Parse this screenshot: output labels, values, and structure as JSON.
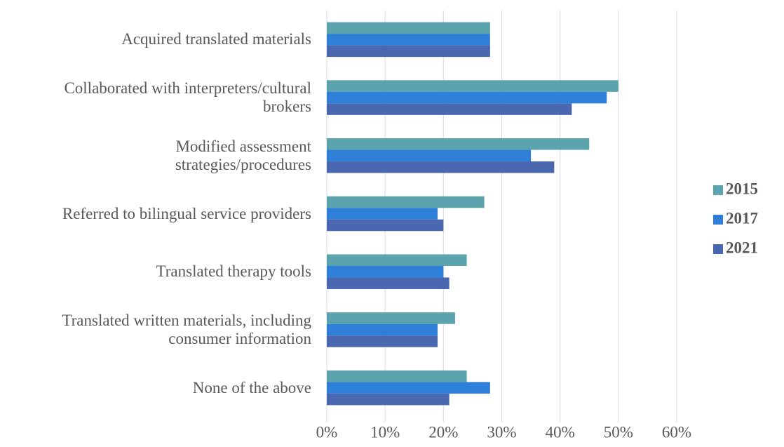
{
  "chart_data": {
    "type": "hbar",
    "categories": [
      "Acquired translated materials",
      "Collaborated with interpreters/cultural\nbrokers",
      "Modified assessment\nstrategies/procedures",
      "Referred to bilingual service providers",
      "Translated therapy tools",
      "Translated written materials, including\nconsumer information",
      "None of the above"
    ],
    "series": [
      {
        "name": "2015",
        "color": "#5ba3ad",
        "values": [
          28,
          50,
          45,
          27,
          24,
          22,
          24
        ]
      },
      {
        "name": "2017",
        "color": "#2e7fd8",
        "values": [
          28,
          48,
          35,
          19,
          20,
          19,
          28
        ]
      },
      {
        "name": "2021",
        "color": "#4a68b0",
        "values": [
          28,
          42,
          39,
          20,
          21,
          19,
          21
        ]
      }
    ],
    "xlim": [
      0,
      60
    ],
    "xticks": [
      {
        "value": 0,
        "label": "0%"
      },
      {
        "value": 10,
        "label": "10%"
      },
      {
        "value": 20,
        "label": "20%"
      },
      {
        "value": 30,
        "label": "30%"
      },
      {
        "value": 40,
        "label": "40%"
      },
      {
        "value": 50,
        "label": "50%"
      },
      {
        "value": 60,
        "label": "60%"
      }
    ],
    "grid": true,
    "legend": "right"
  }
}
